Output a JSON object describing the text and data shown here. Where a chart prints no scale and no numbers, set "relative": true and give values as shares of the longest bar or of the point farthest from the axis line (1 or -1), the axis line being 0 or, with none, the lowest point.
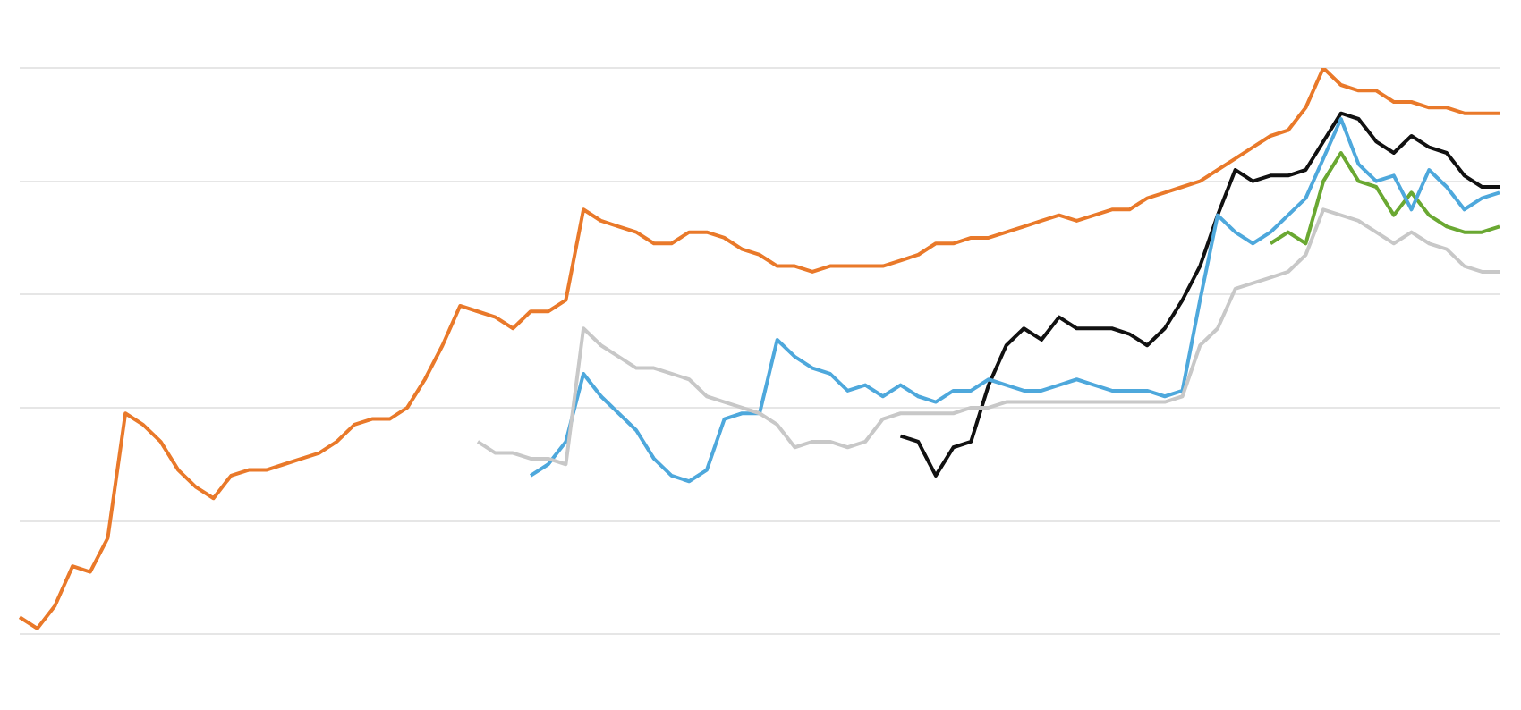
{
  "chart_data": {
    "type": "line",
    "relative": true,
    "grid": "y",
    "marker": "none",
    "line_style": "solid",
    "legend": false,
    "categories": [
      null,
      null,
      null,
      null,
      null,
      null,
      null,
      null,
      null,
      null,
      null,
      null,
      null,
      null,
      null,
      null,
      null,
      null,
      null,
      null,
      null,
      null,
      null,
      null,
      null,
      null,
      null,
      null,
      null,
      null,
      null,
      null,
      null,
      null,
      null,
      null,
      null,
      null,
      null,
      null,
      null,
      null,
      null,
      null,
      null,
      null,
      null,
      null,
      null,
      null,
      null,
      null,
      null,
      null,
      null,
      null,
      null,
      null,
      null,
      null,
      null,
      null,
      null,
      null,
      null,
      null,
      null,
      null,
      null,
      null,
      null,
      null,
      null,
      null,
      null,
      null,
      null,
      null,
      null,
      null,
      null,
      null,
      null,
      null,
      null
    ],
    "series": [
      {
        "color": "#c8c8c8",
        "values": [
          null,
          null,
          null,
          null,
          null,
          null,
          null,
          null,
          null,
          null,
          null,
          null,
          null,
          null,
          null,
          null,
          null,
          null,
          null,
          null,
          null,
          null,
          null,
          null,
          null,
          null,
          0.34,
          0.32,
          0.32,
          0.31,
          0.31,
          0.3,
          0.54,
          0.51,
          0.49,
          0.47,
          0.47,
          0.46,
          0.45,
          0.42,
          0.41,
          0.4,
          0.39,
          0.37,
          0.33,
          0.34,
          0.34,
          0.33,
          0.34,
          0.38,
          0.39,
          0.39,
          0.39,
          0.39,
          0.4,
          0.4,
          0.41,
          0.41,
          0.41,
          0.41,
          0.41,
          0.41,
          0.41,
          0.41,
          0.41,
          0.41,
          0.42,
          0.51,
          0.54,
          0.61,
          0.62,
          0.63,
          0.64,
          0.67,
          0.75,
          0.74,
          0.73,
          0.71,
          0.69,
          0.71,
          0.69,
          0.68,
          0.65,
          0.64,
          0.64
        ]
      },
      {
        "color": "#e9792a",
        "values": [
          0.03,
          0.01,
          0.05,
          0.12,
          0.11,
          0.17,
          0.39,
          0.37,
          0.34,
          0.29,
          0.26,
          0.24,
          0.28,
          0.29,
          0.29,
          0.3,
          0.31,
          0.32,
          0.34,
          0.37,
          0.38,
          0.38,
          0.4,
          0.45,
          0.51,
          0.58,
          0.57,
          0.56,
          0.54,
          0.57,
          0.57,
          0.59,
          0.75,
          0.73,
          0.72,
          0.71,
          0.69,
          0.69,
          0.71,
          0.71,
          0.7,
          0.68,
          0.67,
          0.65,
          0.65,
          0.64,
          0.65,
          0.65,
          0.65,
          0.65,
          0.66,
          0.67,
          0.69,
          0.69,
          0.7,
          0.7,
          0.71,
          0.72,
          0.73,
          0.74,
          0.73,
          0.74,
          0.75,
          0.75,
          0.77,
          0.78,
          0.79,
          0.8,
          0.82,
          0.84,
          0.86,
          0.88,
          0.89,
          0.93,
          1,
          0.97,
          0.96,
          0.96,
          0.94,
          0.94,
          0.93,
          0.93,
          0.92,
          0.92,
          0.92
        ]
      },
      {
        "color": "#4ea8dc",
        "values": [
          null,
          null,
          null,
          null,
          null,
          null,
          null,
          null,
          null,
          null,
          null,
          null,
          null,
          null,
          null,
          null,
          null,
          null,
          null,
          null,
          null,
          null,
          null,
          null,
          null,
          null,
          null,
          null,
          null,
          0.28,
          0.3,
          0.34,
          0.46,
          0.42,
          0.39,
          0.36,
          0.31,
          0.28,
          0.27,
          0.29,
          0.38,
          0.39,
          0.39,
          0.52,
          0.49,
          0.47,
          0.46,
          0.43,
          0.44,
          0.42,
          0.44,
          0.42,
          0.41,
          0.43,
          0.43,
          0.45,
          0.44,
          0.43,
          0.43,
          0.44,
          0.45,
          0.44,
          0.43,
          0.43,
          0.43,
          0.42,
          0.43,
          0.59,
          0.74,
          0.71,
          0.69,
          0.71,
          0.74,
          0.77,
          0.84,
          0.91,
          0.83,
          0.8,
          0.81,
          0.75,
          0.82,
          0.79,
          0.75,
          0.77,
          0.78
        ]
      },
      {
        "color": "#111111",
        "values": [
          null,
          null,
          null,
          null,
          null,
          null,
          null,
          null,
          null,
          null,
          null,
          null,
          null,
          null,
          null,
          null,
          null,
          null,
          null,
          null,
          null,
          null,
          null,
          null,
          null,
          null,
          null,
          null,
          null,
          null,
          null,
          null,
          null,
          null,
          null,
          null,
          null,
          null,
          null,
          null,
          null,
          null,
          null,
          null,
          null,
          null,
          null,
          null,
          null,
          null,
          0.35,
          0.34,
          0.28,
          0.33,
          0.34,
          0.44,
          0.51,
          0.54,
          0.52,
          0.56,
          0.54,
          0.54,
          0.54,
          0.53,
          0.51,
          0.54,
          0.59,
          0.65,
          0.74,
          0.82,
          0.8,
          0.81,
          0.81,
          0.82,
          0.87,
          0.92,
          0.91,
          0.87,
          0.85,
          0.88,
          0.86,
          0.85,
          0.81,
          0.79,
          0.79
        ]
      },
      {
        "color": "#6aa832",
        "values": [
          null,
          null,
          null,
          null,
          null,
          null,
          null,
          null,
          null,
          null,
          null,
          null,
          null,
          null,
          null,
          null,
          null,
          null,
          null,
          null,
          null,
          null,
          null,
          null,
          null,
          null,
          null,
          null,
          null,
          null,
          null,
          null,
          null,
          null,
          null,
          null,
          null,
          null,
          null,
          null,
          null,
          null,
          null,
          null,
          null,
          null,
          null,
          null,
          null,
          null,
          null,
          null,
          null,
          null,
          null,
          null,
          null,
          null,
          null,
          null,
          null,
          null,
          null,
          null,
          null,
          null,
          null,
          null,
          null,
          null,
          null,
          0.69,
          0.71,
          0.69,
          0.8,
          0.85,
          0.8,
          0.79,
          0.74,
          0.78,
          0.74,
          0.72,
          0.71,
          0.71,
          0.72
        ]
      }
    ]
  }
}
